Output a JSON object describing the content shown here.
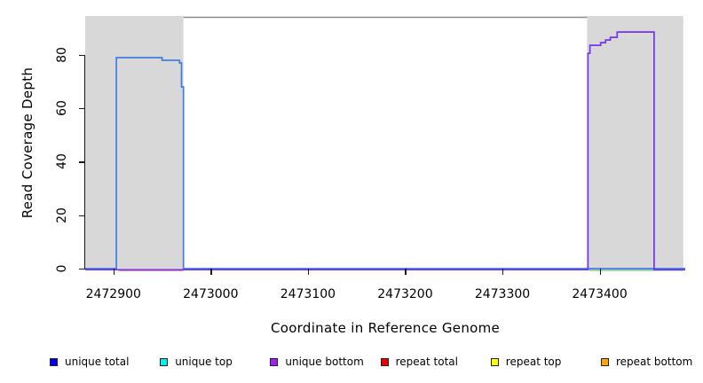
{
  "chart_data": {
    "type": "line",
    "title": "",
    "xlabel": "Coordinate in Reference Genome",
    "ylabel": "Read Coverage Depth",
    "xlim": [
      2472871,
      2473488
    ],
    "ylim": [
      0,
      94.6
    ],
    "x_ticks": [
      2472900,
      2473000,
      2473100,
      2473200,
      2473300,
      2473400
    ],
    "x_tick_labels": [
      "2472900",
      "2473000",
      "2473100",
      "2473200",
      "2473300",
      "2473400"
    ],
    "y_ticks": [
      0,
      20,
      40,
      60,
      80
    ],
    "y_tick_labels": [
      "0",
      "20",
      "40",
      "60",
      "80"
    ],
    "grid": false,
    "shaded_regions": [
      {
        "name": "repeat-region-left",
        "x0": 2472871,
        "x1": 2472972,
        "color": "#d8d8d8"
      },
      {
        "name": "repeat-region-right",
        "x0": 2473387,
        "x1": 2473486,
        "color": "#d8d8d8"
      }
    ],
    "series": [
      {
        "name": "boundary-line-top",
        "color": "#8a8a8a",
        "width": 1.6,
        "dy": 0,
        "points": [
          [
            2472972,
            94.1
          ],
          [
            2473387,
            94.1
          ]
        ]
      },
      {
        "name": "repeat-total-baseline",
        "color": "#e0506e",
        "width": 1.6,
        "dy": 1.8,
        "points": [
          [
            2472905,
            0
          ],
          [
            2472972,
            0
          ]
        ]
      },
      {
        "name": "green-baseline",
        "color": "#8cc88c",
        "width": 1.6,
        "dy": 1.8,
        "points": [
          [
            2473389,
            0
          ],
          [
            2473486,
            0
          ]
        ]
      },
      {
        "name": "unique-total",
        "color": "#3f7de6",
        "width": 1.7,
        "dy": 0,
        "points": [
          [
            2472871,
            0
          ],
          [
            2472903,
            0
          ],
          [
            2472903,
            79
          ],
          [
            2472950,
            79
          ],
          [
            2472950,
            78
          ],
          [
            2472968,
            78
          ],
          [
            2472968,
            77
          ],
          [
            2472970,
            77
          ],
          [
            2472970,
            68
          ],
          [
            2472972,
            68
          ],
          [
            2472972,
            0
          ],
          [
            2473488,
            0
          ]
        ]
      },
      {
        "name": "unique-bottom",
        "color": "#7433f0",
        "width": 1.7,
        "dy": 1.2,
        "points": [
          [
            2472871,
            0
          ],
          [
            2473388,
            0
          ],
          [
            2473388,
            81
          ],
          [
            2473390,
            81
          ],
          [
            2473390,
            84
          ],
          [
            2473401,
            84
          ],
          [
            2473401,
            85
          ],
          [
            2473406,
            85
          ],
          [
            2473406,
            86
          ],
          [
            2473411,
            86
          ],
          [
            2473411,
            87
          ],
          [
            2473418,
            87
          ],
          [
            2473418,
            89
          ],
          [
            2473456,
            89
          ],
          [
            2473456,
            0
          ],
          [
            2473488,
            0
          ]
        ]
      }
    ],
    "legend": [
      {
        "label": "unique total",
        "color": "#0000ee"
      },
      {
        "label": "unique top",
        "color": "#00eeee"
      },
      {
        "label": "unique bottom",
        "color": "#a020f0"
      },
      {
        "label": "repeat total",
        "color": "#ee0000"
      },
      {
        "label": "repeat top",
        "color": "#ffff00"
      },
      {
        "label": "repeat bottom",
        "color": "#ffa500"
      }
    ],
    "legend_position": "bottom"
  }
}
